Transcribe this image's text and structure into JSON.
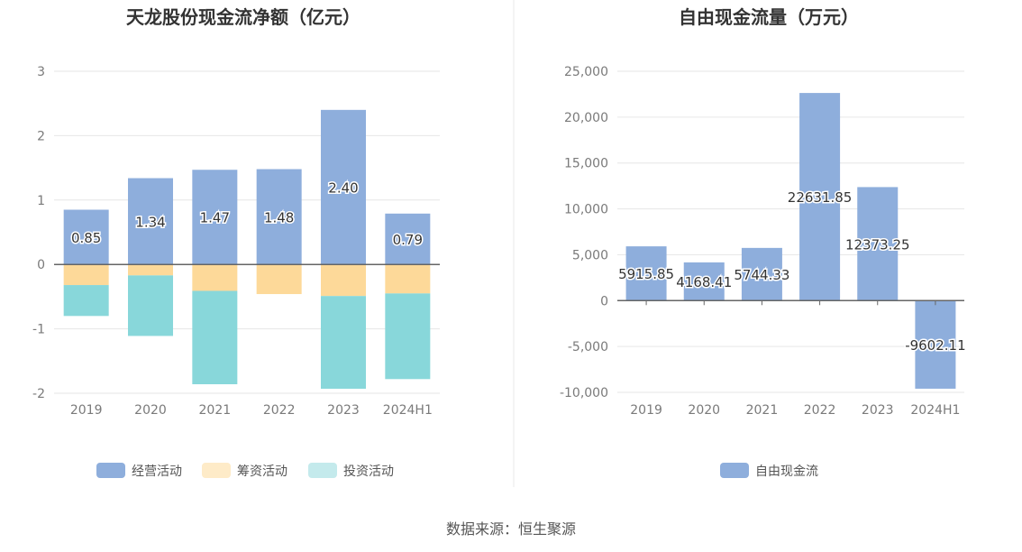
{
  "colors": {
    "operating": "#8eaedc",
    "financing": "#fdd999",
    "investing": "#88d7da",
    "free_cash_flow": "#8eaedc",
    "grid": "#e6e6e6",
    "axis": "#666666",
    "divider": "#e8e8e8"
  },
  "source_text": "数据来源：恒生聚源",
  "chart_data": [
    {
      "type": "bar",
      "stacked": true,
      "title": "天龙股份现金流净额（亿元）",
      "categories": [
        "2019",
        "2020",
        "2021",
        "2022",
        "2023",
        "2024H1"
      ],
      "series": [
        {
          "name": "经营活动",
          "values": [
            0.85,
            1.34,
            1.47,
            1.48,
            2.4,
            0.79
          ]
        },
        {
          "name": "筹资活动",
          "values": [
            -0.32,
            -0.17,
            -0.41,
            -0.46,
            -0.49,
            -0.45
          ]
        },
        {
          "name": "投资活动",
          "values": [
            -0.48,
            -0.94,
            -1.45,
            0.0,
            -1.44,
            -1.33
          ]
        }
      ],
      "data_labels": [
        "0.85",
        "1.34",
        "1.47",
        "1.48",
        "2.40",
        "0.79"
      ],
      "ylim": [
        -2,
        3
      ],
      "yticks": [
        "-2",
        "-1",
        "0",
        "1",
        "2",
        "3"
      ],
      "legend_position": "bottom",
      "grid": true
    },
    {
      "type": "bar",
      "title": "自由现金流量（万元）",
      "categories": [
        "2019",
        "2020",
        "2021",
        "2022",
        "2023",
        "2024H1"
      ],
      "series": [
        {
          "name": "自由现金流",
          "values": [
            5915.85,
            4168.41,
            5744.33,
            22631.85,
            12373.25,
            -9602.11
          ]
        }
      ],
      "data_labels": [
        "5915.85",
        "4168.41",
        "5744.33",
        "22631.85",
        "12373.25",
        "-9602.11"
      ],
      "ylim": [
        -10000,
        25000
      ],
      "yticks": [
        "-10,000",
        "-5,000",
        "0",
        "5,000",
        "10,000",
        "15,000",
        "20,000",
        "25,000"
      ],
      "legend_position": "bottom",
      "grid": true
    }
  ]
}
